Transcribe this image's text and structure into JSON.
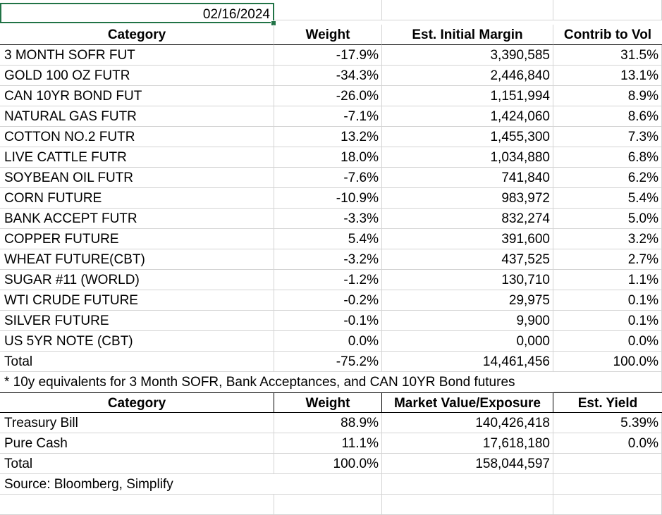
{
  "date_cell": "02/16/2024",
  "futures_table": {
    "headers": [
      "Category",
      "Weight",
      "Est. Initial Margin",
      "Contrib to Vol"
    ],
    "rows": [
      [
        "3 MONTH SOFR FUT",
        "-17.9%",
        "3,390,585",
        "31.5%"
      ],
      [
        "GOLD 100 OZ FUTR",
        "-34.3%",
        "2,446,840",
        "13.1%"
      ],
      [
        "CAN 10YR BOND FUT",
        "-26.0%",
        "1,151,994",
        "8.9%"
      ],
      [
        "NATURAL GAS FUTR",
        "-7.1%",
        "1,424,060",
        "8.6%"
      ],
      [
        "COTTON NO.2 FUTR",
        "13.2%",
        "1,455,300",
        "7.3%"
      ],
      [
        "LIVE CATTLE FUTR",
        "18.0%",
        "1,034,880",
        "6.8%"
      ],
      [
        "SOYBEAN OIL FUTR",
        "-7.6%",
        "741,840",
        "6.2%"
      ],
      [
        "CORN FUTURE",
        "-10.9%",
        "983,972",
        "5.4%"
      ],
      [
        "BANK ACCEPT FUTR",
        "-3.3%",
        "832,274",
        "5.0%"
      ],
      [
        "COPPER FUTURE",
        "5.4%",
        "391,600",
        "3.2%"
      ],
      [
        "WHEAT FUTURE(CBT)",
        "-3.2%",
        "437,525",
        "2.7%"
      ],
      [
        "SUGAR #11 (WORLD)",
        "-1.2%",
        "130,710",
        "1.1%"
      ],
      [
        "WTI CRUDE FUTURE",
        "-0.2%",
        "29,975",
        "0.1%"
      ],
      [
        "SILVER FUTURE",
        "-0.1%",
        "9,900",
        "0.1%"
      ],
      [
        "US 5YR NOTE (CBT)",
        "0.0%",
        "0,000",
        "0.0%"
      ]
    ],
    "total": [
      "Total",
      "-75.2%",
      "14,461,456",
      "100.0%"
    ]
  },
  "footnote": "* 10y equivalents for 3 Month SOFR, Bank Acceptances, and CAN 10YR Bond futures",
  "cash_table": {
    "headers": [
      "Category",
      "Weight",
      "Market Value/Exposure",
      "Est. Yield"
    ],
    "rows": [
      [
        "Treasury Bill",
        "88.9%",
        "140,426,418",
        "5.39%"
      ],
      [
        "Pure Cash",
        "11.1%",
        "17,618,180",
        "0.0%"
      ]
    ],
    "total": [
      "Total",
      "100.0%",
      "158,044,597",
      ""
    ]
  },
  "source": "Source: Bloomberg, Simplify",
  "colors": {
    "selection": "#217346",
    "gridline": "#d4d4d4",
    "border": "#000000"
  }
}
